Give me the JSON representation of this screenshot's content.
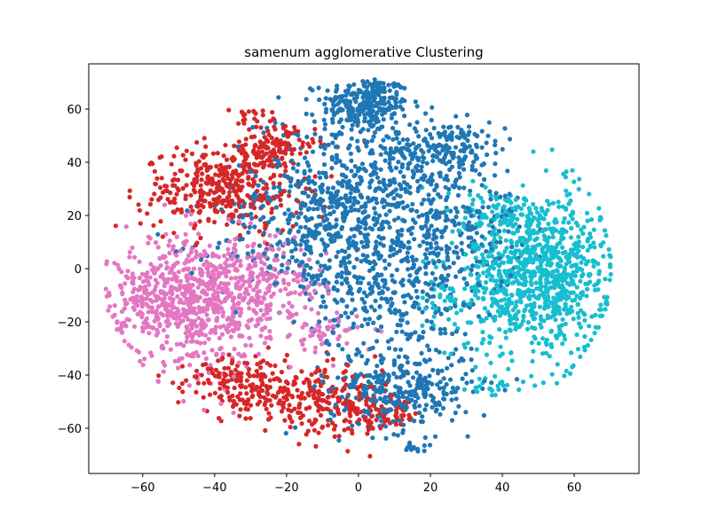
{
  "chart_data": {
    "type": "scatter",
    "title": "samenum agglomerative Clustering",
    "xlabel": "",
    "ylabel": "",
    "xlim": [
      -75,
      78
    ],
    "ylim": [
      -77,
      77
    ],
    "xticks": [
      -60,
      -40,
      -20,
      0,
      20,
      40,
      60
    ],
    "yticks": [
      -60,
      -40,
      -20,
      0,
      20,
      40,
      60
    ],
    "xtick_labels": [
      "−60",
      "−40",
      "−20",
      "0",
      "20",
      "40",
      "60"
    ],
    "ytick_labels": [
      "−60",
      "−40",
      "−20",
      "0",
      "20",
      "40",
      "60"
    ],
    "grid": false,
    "legend": "none",
    "series": [
      {
        "color": "#1f77b4",
        "clusters": [
          {
            "center": [
              2,
              62
            ],
            "spread": [
              6,
              5
            ],
            "n": 260
          },
          {
            "center": [
              0,
              30
            ],
            "spread": [
              14,
              14
            ],
            "n": 520
          },
          {
            "center": [
              -12,
              10
            ],
            "spread": [
              14,
              12
            ],
            "n": 300
          },
          {
            "center": [
              25,
              45
            ],
            "spread": [
              8,
              5
            ],
            "n": 160
          },
          {
            "center": [
              12,
              -45
            ],
            "spread": [
              10,
              8
            ],
            "n": 320
          },
          {
            "center": [
              25,
              15
            ],
            "spread": [
              10,
              12
            ],
            "n": 240
          },
          {
            "center": [
              10,
              -10
            ],
            "spread": [
              12,
              12
            ],
            "n": 260
          },
          {
            "center": [
              15,
              -68
            ],
            "spread": [
              3,
              1.5
            ],
            "n": 12
          }
        ]
      },
      {
        "color": "#d62728",
        "clusters": [
          {
            "center": [
              -38,
              30
            ],
            "spread": [
              11,
              8
            ],
            "n": 360
          },
          {
            "center": [
              -24,
              45
            ],
            "spread": [
              6,
              4
            ],
            "n": 140
          },
          {
            "center": [
              -30,
              57
            ],
            "spread": [
              3,
              1.5
            ],
            "n": 22
          },
          {
            "center": [
              -28,
              -45
            ],
            "spread": [
              10,
              6
            ],
            "n": 160
          },
          {
            "center": [
              -10,
              -50
            ],
            "spread": [
              8,
              6
            ],
            "n": 180
          },
          {
            "center": [
              5,
              -55
            ],
            "spread": [
              6,
              3
            ],
            "n": 80
          },
          {
            "center": [
              -40,
              -40
            ],
            "spread": [
              5,
              3
            ],
            "n": 40
          }
        ]
      },
      {
        "color": "#e377c2",
        "clusters": [
          {
            "center": [
              -45,
              -12
            ],
            "spread": [
              10,
              12
            ],
            "n": 700
          },
          {
            "center": [
              -25,
              -5
            ],
            "spread": [
              8,
              8
            ],
            "n": 160
          },
          {
            "center": [
              -10,
              -25
            ],
            "spread": [
              5,
              4
            ],
            "n": 50
          },
          {
            "center": [
              -60,
              -12
            ],
            "spread": [
              4,
              6
            ],
            "n": 70
          }
        ]
      },
      {
        "color": "#17becf",
        "clusters": [
          {
            "center": [
              50,
              -2
            ],
            "spread": [
              10,
              15
            ],
            "n": 900
          },
          {
            "center": [
              40,
              20
            ],
            "spread": [
              5,
              5
            ],
            "n": 70
          },
          {
            "center": [
              38,
              -45
            ],
            "spread": [
              3,
              2
            ],
            "n": 20
          },
          {
            "center": [
              25,
              -10
            ],
            "spread": [
              5,
              6
            ],
            "n": 40
          }
        ]
      }
    ]
  }
}
